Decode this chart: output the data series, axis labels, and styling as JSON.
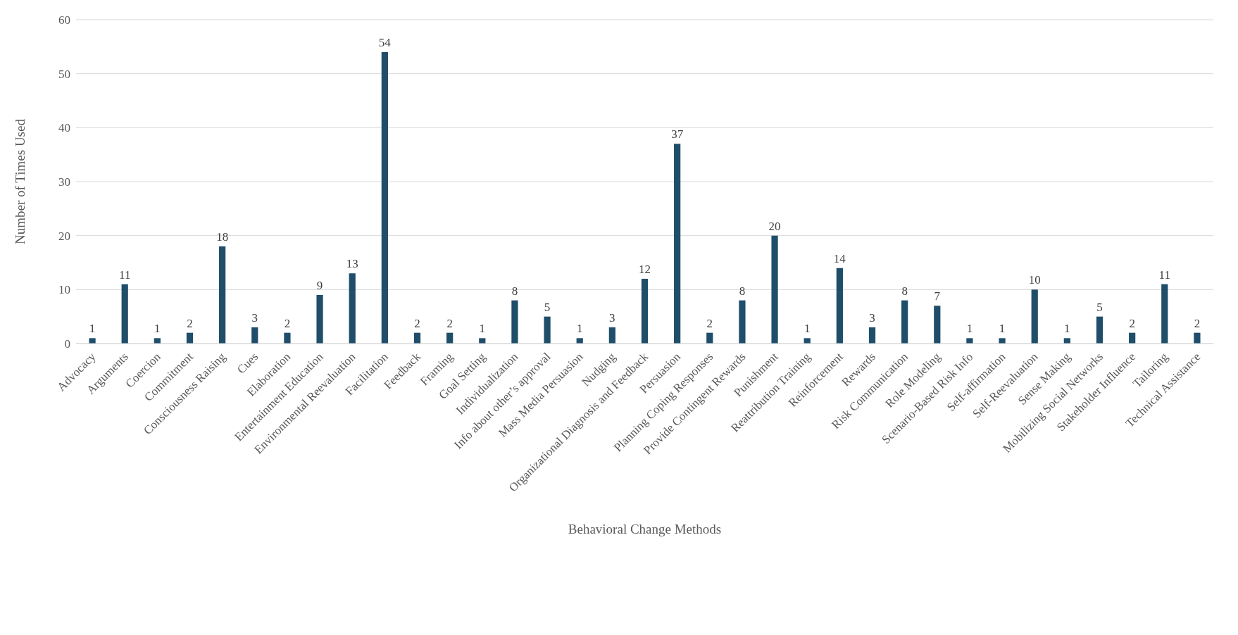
{
  "chart_data": {
    "type": "bar",
    "xlabel": "Behavioral Change Methods",
    "ylabel": "Number of Times Used",
    "categories": [
      "Advocacy",
      "Arguments",
      "Coercion",
      "Commitment",
      "Consciousness Raising",
      "Cues",
      "Elaboration",
      "Entertainment Education",
      "Environmental Reevaluation",
      "Facilitation",
      "Feedback",
      "Framing",
      "Goal Setting",
      "Individualization",
      "Info about other’s approval",
      "Mass Media Persuasion",
      "Nudging",
      "Organizational Diagnosis and Feedback",
      "Persuasion",
      "Planning Coping Responses",
      "Provide Contingent Rewards",
      "Punishment",
      "Reattribution Training",
      "Reinforcement",
      "Rewards",
      "Risk Communication",
      "Role Modeling",
      "Scenario-Based Risk Info",
      "Self-affirmation",
      "Self-Reevaluation",
      "Sense Making",
      "Mobilizing Social Networks",
      "Stakeholder Influence",
      "Tailoring",
      "Technical Assistance"
    ],
    "values": [
      1,
      11,
      1,
      2,
      18,
      3,
      2,
      9,
      13,
      54,
      2,
      2,
      1,
      8,
      5,
      1,
      3,
      12,
      37,
      2,
      8,
      20,
      1,
      14,
      3,
      8,
      7,
      1,
      1,
      10,
      1,
      5,
      2,
      11,
      2
    ],
    "color": "#1f4e6b",
    "ylim": [
      0,
      60
    ],
    "yticks": [
      0,
      10,
      20,
      30,
      40,
      50,
      60
    ],
    "grid": "y",
    "data_labels": true
  }
}
